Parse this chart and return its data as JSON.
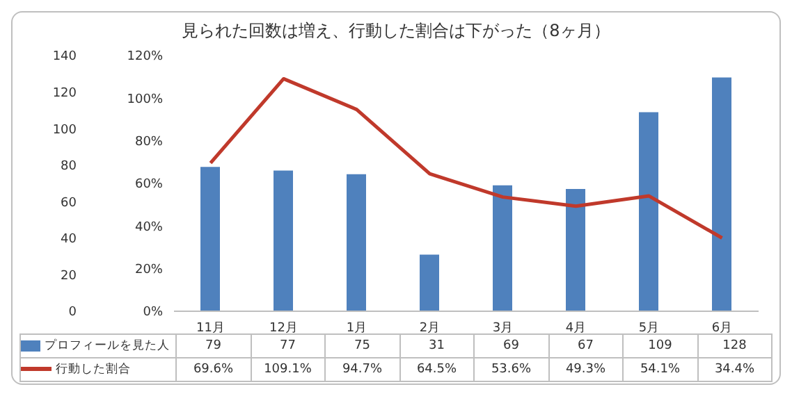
{
  "chart_data": {
    "type": "bar",
    "title": "見られた回数は増え、行動した割合は下がった（8ヶ月）",
    "categories": [
      "11月",
      "12月",
      "1月",
      "2月",
      "3月",
      "4月",
      "5月",
      "6月"
    ],
    "series": [
      {
        "name": "プロフィールを見た人",
        "axis": "y2",
        "color": "#4f81bd",
        "values": [
          79,
          77,
          75,
          31,
          69,
          67,
          109,
          128
        ],
        "value_labels": [
          "79",
          "77",
          "75",
          "31",
          "69",
          "67",
          "109",
          "128"
        ]
      },
      {
        "name": "行動した割合",
        "type": "line",
        "axis": "y",
        "color": "#c0392b",
        "marker": "none",
        "values": [
          69.6,
          109.1,
          94.7,
          64.5,
          53.6,
          49.3,
          54.1,
          34.4
        ],
        "value_labels": [
          "69.6%",
          "109.1%",
          "94.7%",
          "64.5%",
          "53.6%",
          "49.3%",
          "54.1%",
          "34.4%"
        ]
      }
    ],
    "ylim": [
      0,
      120
    ],
    "yticks": [
      {
        "value": 0,
        "label": "0%"
      },
      {
        "value": 20,
        "label": "20%"
      },
      {
        "value": 40,
        "label": "40%"
      },
      {
        "value": 60,
        "label": "60%"
      },
      {
        "value": 80,
        "label": "80%"
      },
      {
        "value": 100,
        "label": "100%"
      },
      {
        "value": 120,
        "label": "120%"
      }
    ],
    "y2lim": [
      0,
      140
    ],
    "y2ticks": [
      0,
      20,
      40,
      60,
      80,
      100,
      120,
      140
    ],
    "legend": "bottom"
  }
}
